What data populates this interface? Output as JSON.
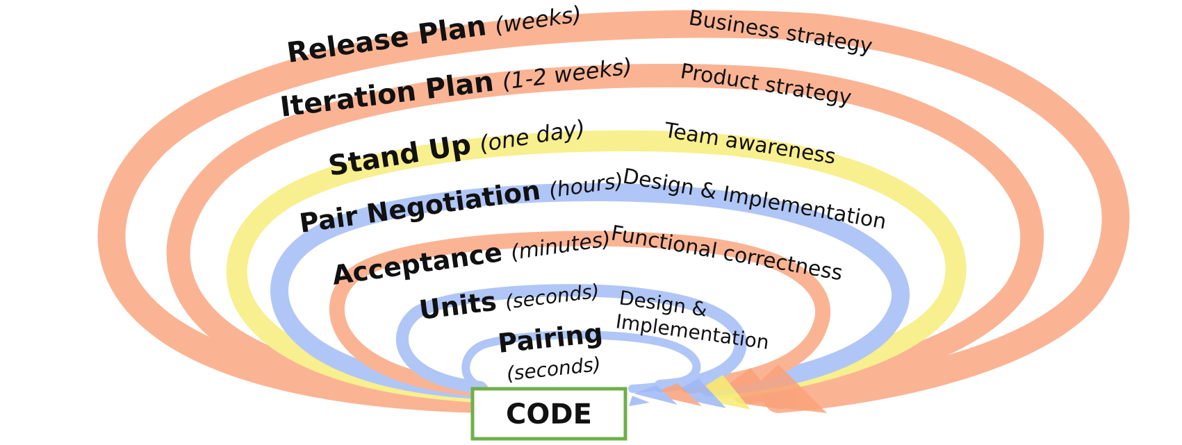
{
  "colors": {
    "orange": "#f9a27a",
    "yellow": "#f7ec73",
    "blue": "#9db8f5",
    "code_border": "#6fb04a"
  },
  "loops": [
    {
      "name": "Release Plan",
      "duration": "(weeks)",
      "description": "Business strategy",
      "color": "orange"
    },
    {
      "name": "Iteration Plan",
      "duration": "(1-2 weeks)",
      "description": "Product strategy",
      "color": "orange"
    },
    {
      "name": "Stand Up",
      "duration": "(one day)",
      "description": "Team awareness",
      "color": "yellow"
    },
    {
      "name": "Pair Negotiation",
      "duration": "(hours)",
      "description": "Design & Implementation",
      "color": "blue"
    },
    {
      "name": "Acceptance",
      "duration": "(minutes)",
      "description": "Functional correctness",
      "color": "orange"
    },
    {
      "name": "Units",
      "duration": "(seconds)",
      "description": "Design &",
      "description_line2": "Implementation",
      "color": "blue"
    },
    {
      "name": "Pairing",
      "duration": "(seconds)",
      "description": "",
      "color": "blue"
    }
  ],
  "center": {
    "label": "CODE"
  }
}
